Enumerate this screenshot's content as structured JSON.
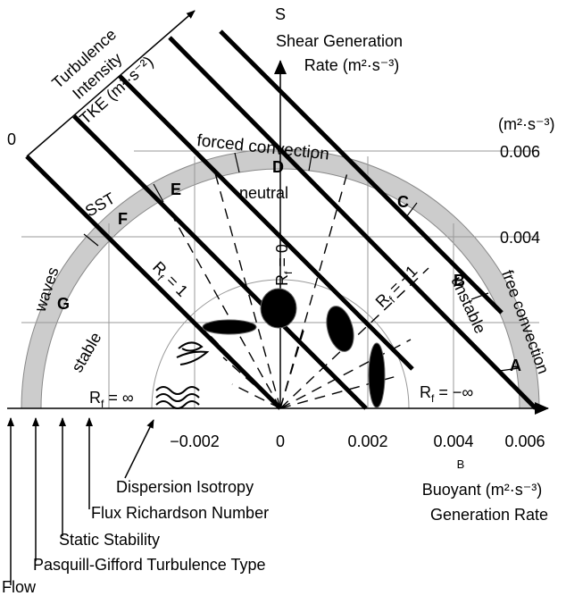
{
  "title": {
    "letter": "S",
    "line1": "Shear Generation",
    "line2": "Rate  (m²·s⁻³)"
  },
  "tke_axis": {
    "line1": "Turbulence",
    "line2": "Intensity",
    "line3": "TKE (m²·s⁻²)",
    "origin": "0"
  },
  "y_axis": {
    "unit": "(m²·s⁻³)",
    "ticks": [
      "0.006",
      "0.004"
    ]
  },
  "x_axis": {
    "ticks": [
      "−0.002",
      "0",
      "0.002",
      "0.004",
      "0.006"
    ],
    "letter": "B",
    "line1": "Buoyant (m²·s⁻³)",
    "line2": "Generation Rate"
  },
  "regions": {
    "forced": "forced convection",
    "free": "free convection",
    "waves": "waves",
    "stable": "stable",
    "unstable": "unstable",
    "neutral": "neutral",
    "sst": "SST"
  },
  "classes": [
    "A",
    "B",
    "C",
    "D",
    "E",
    "F",
    "G"
  ],
  "richardson": [
    {
      "symbol": "R",
      "subscript": "f",
      "relation": " = 0"
    },
    {
      "symbol": "R",
      "subscript": "f",
      "relation": " = 1"
    },
    {
      "symbol": "R",
      "subscript": "f",
      "relation": " = −1"
    },
    {
      "symbol": "R",
      "subscript": "f",
      "relation": " = ∞"
    },
    {
      "symbol": "R",
      "subscript": "f",
      "relation": " = −∞"
    }
  ],
  "legend": [
    "Dispersion Isotropy",
    "Flux Richardson Number",
    "Static Stability",
    "Pasquill-Gifford Turbulence Type",
    "Flow"
  ]
}
